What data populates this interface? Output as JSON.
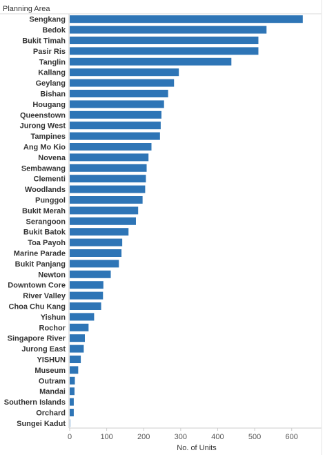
{
  "chart_data": {
    "type": "bar",
    "orientation": "horizontal",
    "row_header": "Planning Area",
    "xlabel": "No. of Units",
    "xlim": [
      0,
      680
    ],
    "x_ticks": [
      0,
      100,
      200,
      300,
      400,
      500,
      600
    ],
    "bar_color": "#2e75b6",
    "grid": false,
    "categories": [
      "Sengkang",
      "Bedok",
      "Bukit Timah",
      "Pasir Ris",
      "Tanglin",
      "Kallang",
      "Geylang",
      "Bishan",
      "Hougang",
      "Queenstown",
      "Jurong West",
      "Tampines",
      "Ang Mo Kio",
      "Novena",
      "Sembawang",
      "Clementi",
      "Woodlands",
      "Punggol",
      "Bukit Merah",
      "Serangoon",
      "Bukit Batok",
      "Toa Payoh",
      "Marine Parade",
      "Bukit Panjang",
      "Newton",
      "Downtown Core",
      "River Valley",
      "Choa Chu Kang",
      "Yishun",
      "Rochor",
      "Singapore River",
      "Jurong East",
      "YISHUN",
      "Museum",
      "Outram",
      "Mandai",
      "Southern Islands",
      "Orchard",
      "Sungei Kadut"
    ],
    "values": [
      630,
      532,
      510,
      510,
      437,
      295,
      282,
      266,
      255,
      248,
      246,
      244,
      221,
      213,
      208,
      206,
      204,
      197,
      185,
      179,
      159,
      142,
      140,
      133,
      111,
      91,
      90,
      85,
      66,
      51,
      41,
      38,
      30,
      23,
      14,
      13,
      11,
      11,
      1
    ]
  }
}
